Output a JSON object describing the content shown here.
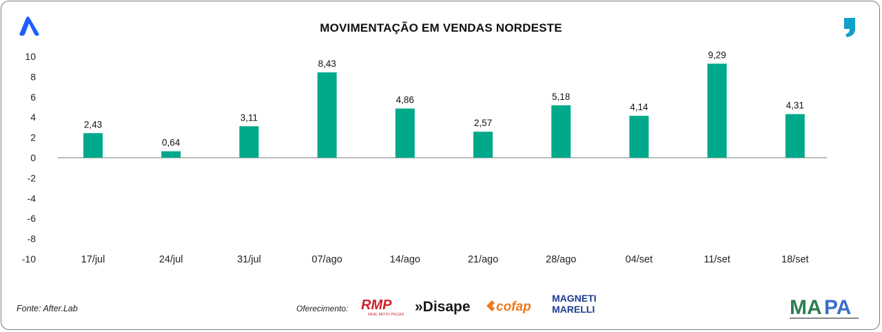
{
  "chart_data": {
    "type": "bar",
    "title": "MOVIMENTAÇÃO EM VENDAS NORDESTE",
    "categories": [
      "17/jul",
      "24/jul",
      "31/jul",
      "07/ago",
      "14/ago",
      "21/ago",
      "28/ago",
      "04/set",
      "11/set",
      "18/set"
    ],
    "values": [
      2.43,
      0.64,
      3.11,
      8.43,
      4.86,
      2.57,
      5.18,
      4.14,
      9.29,
      4.31
    ],
    "value_labels": [
      "2,43",
      "0,64",
      "3,11",
      "8,43",
      "4,86",
      "2,57",
      "5,18",
      "4,14",
      "9,29",
      "4,31"
    ],
    "ylim": [
      -10,
      10
    ],
    "yticks": [
      10,
      8,
      6,
      4,
      2,
      0,
      -2,
      -4,
      -6,
      -8,
      -10
    ],
    "xlabel": "",
    "ylabel": "",
    "grid": false,
    "bar_color": "#00a98a"
  },
  "footer": {
    "source": "Fonte: After.Lab",
    "offered_by": "Oferecimento:"
  },
  "logos": {
    "rmp": "RMP REAL MOTO PEÇAS",
    "disape": "Disape",
    "cofap": "cofap",
    "magneti_marelli": "MAGNETI MARELLI",
    "mapa": "MAPA"
  },
  "colors": {
    "brand_icon": "#1f5fff",
    "quote_icon": "#10a0c8"
  }
}
